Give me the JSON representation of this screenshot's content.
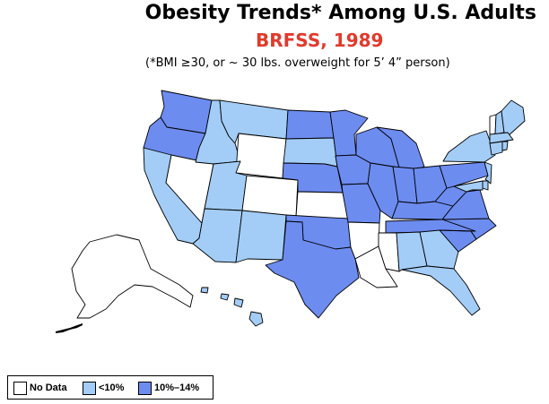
{
  "title": "Obesity Trends*  Among U.S. Adults",
  "subtitle": "BRFSS, 1989",
  "note": "(*BMI ≥30, or ~ 30 lbs. overweight for 5’ 4” person)",
  "legend": [
    {
      "label": "No Data",
      "color": "#ffffff"
    },
    {
      "label": "<10%",
      "color": "#a3cdf7"
    },
    {
      "label": "10%–14%",
      "color": "#6d8cf0"
    }
  ],
  "colors": {
    "no_data": "#ffffff",
    "low": "#a3cdf7",
    "mid": "#6d8cf0",
    "border": "#000000"
  }
}
